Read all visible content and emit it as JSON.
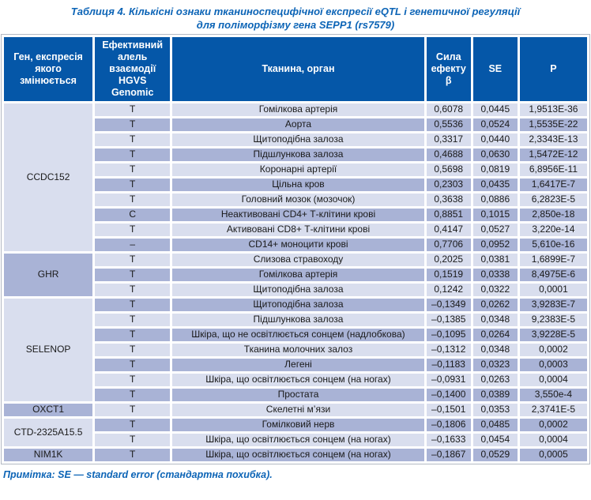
{
  "title": {
    "line1": "Таблиця 4. Кількісні ознаки тканиноспецифічної експресії eQTL і генетичної регуляції",
    "line2": "для поліморфізму гена SEPP1 (rs7579)"
  },
  "note": "Примітка: SE — standard error (стандартна похибка).",
  "colors": {
    "header_bg": "#0557a8",
    "header_text": "#ffffff",
    "row_light": "#d9deee",
    "row_dark": "#a9b3d6",
    "accent_blue": "#0c64b6",
    "cell_text": "#1a1a1a",
    "table_border": "#b3b9c4"
  },
  "table": {
    "headers": [
      "Ген, експресія якого змінюється",
      "Ефективний алель взаємодії HGVS Genomic",
      "Тканина, орган",
      "Сила ефекту β",
      "SE",
      "P"
    ],
    "groups": [
      {
        "gene": "CCDC152",
        "rows": [
          {
            "allele": "T",
            "tissue": "Гомілкова артерія",
            "beta": "0,6078",
            "se": "0,0445",
            "p": "1,9513E-36"
          },
          {
            "allele": "T",
            "tissue": "Аорта",
            "beta": "0,5536",
            "se": "0,0524",
            "p": "1,5535E-22"
          },
          {
            "allele": "T",
            "tissue": "Щитоподібна залоза",
            "beta": "0,3317",
            "se": "0,0440",
            "p": "2,3343E-13"
          },
          {
            "allele": "T",
            "tissue": "Підшлункова залоза",
            "beta": "0,4688",
            "se": "0,0630",
            "p": "1,5472E-12"
          },
          {
            "allele": "T",
            "tissue": "Коронарні артерії",
            "beta": "0,5698",
            "se": "0,0819",
            "p": "6,8956E-11"
          },
          {
            "allele": "T",
            "tissue": "Цільна кров",
            "beta": "0,2303",
            "se": "0,0435",
            "p": "1,6417E-7"
          },
          {
            "allele": "T",
            "tissue": "Головний мозок (мозочок)",
            "beta": "0,3638",
            "se": "0,0886",
            "p": "6,2823E-5"
          },
          {
            "allele": "C",
            "tissue": "Неактивовані CD4+ Т-клітини крові",
            "beta": "0,8851",
            "se": "0,1015",
            "p": "2,850e-18"
          },
          {
            "allele": "T",
            "tissue": "Активовані CD8+ Т-клітини крові",
            "beta": "0,4147",
            "se": "0,0527",
            "p": "3,220e-14"
          },
          {
            "allele": "–",
            "tissue": "CD14+ моноцити крові",
            "beta": "0,7706",
            "se": "0,0952",
            "p": "5,610e-16"
          }
        ]
      },
      {
        "gene": "GHR",
        "rows": [
          {
            "allele": "T",
            "tissue": "Слизова стравоходу",
            "beta": "0,2025",
            "se": "0,0381",
            "p": "1,6899E-7"
          },
          {
            "allele": "T",
            "tissue": "Гомілкова артерія",
            "beta": "0,1519",
            "se": "0,0338",
            "p": "8,4975E-6"
          },
          {
            "allele": "T",
            "tissue": "Щитоподібна залоза",
            "beta": "0,1242",
            "se": "0,0322",
            "p": "0,0001"
          }
        ]
      },
      {
        "gene": "SELENOP",
        "rows": [
          {
            "allele": "T",
            "tissue": "Щитоподібна залоза",
            "beta": "–0,1349",
            "se": "0,0262",
            "p": "3,9283E-7"
          },
          {
            "allele": "T",
            "tissue": "Підшлункова залоза",
            "beta": "–0,1385",
            "se": "0,0348",
            "p": "9,2383E-5"
          },
          {
            "allele": "T",
            "tissue": "Шкіра, що не освітлюється сонцем (надлобкова)",
            "beta": "–0,1095",
            "se": "0,0264",
            "p": "3,9228E-5"
          },
          {
            "allele": "T",
            "tissue": "Тканина молочних залоз",
            "beta": "–0,1312",
            "se": "0,0348",
            "p": "0,0002"
          },
          {
            "allele": "T",
            "tissue": "Легені",
            "beta": "–0,1183",
            "se": "0,0323",
            "p": "0,0003"
          },
          {
            "allele": "T",
            "tissue": "Шкіра, що освітлюється сонцем (на ногах)",
            "beta": "–0,0931",
            "se": "0,0263",
            "p": "0,0004"
          },
          {
            "allele": "T",
            "tissue": "Простата",
            "beta": "–0,1400",
            "se": "0,0389",
            "p": "3,550e-4"
          }
        ]
      },
      {
        "gene": "OXCT1",
        "rows": [
          {
            "allele": "T",
            "tissue": "Скелетні м’язи",
            "beta": "–0,1501",
            "se": "0,0353",
            "p": "2,3741E-5"
          }
        ]
      },
      {
        "gene": "CTD-2325A15.5",
        "rows": [
          {
            "allele": "T",
            "tissue": "Гомілковий нерв",
            "beta": "–0,1806",
            "se": "0,0485",
            "p": "0,0002"
          },
          {
            "allele": "T",
            "tissue": "Шкіра, що освітлюється сонцем (на ногах)",
            "beta": "–0,1633",
            "se": "0,0454",
            "p": "0,0004"
          }
        ]
      },
      {
        "gene": "NIM1K",
        "rows": [
          {
            "allele": "T",
            "tissue": "Шкіра, що освітлюється сонцем (на ногах)",
            "beta": "–0,1867",
            "se": "0,0529",
            "p": "0,0005"
          }
        ]
      }
    ]
  }
}
